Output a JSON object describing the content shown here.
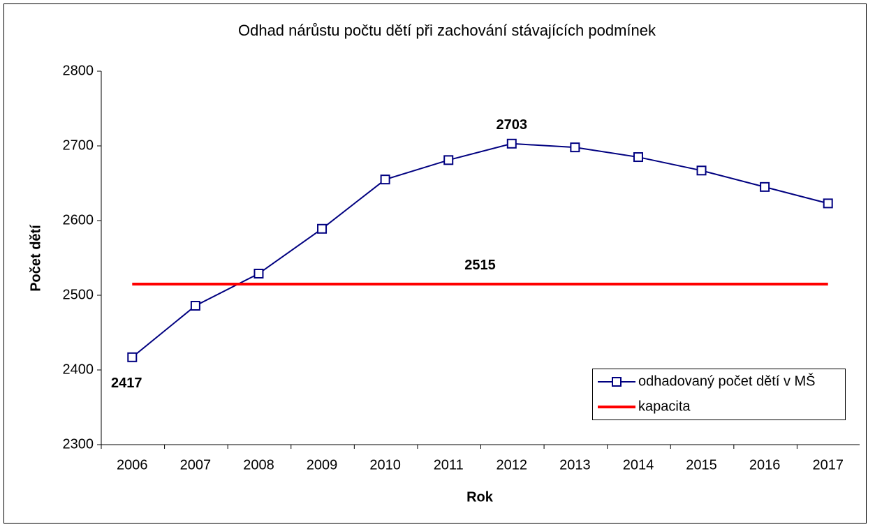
{
  "chart_data": {
    "type": "line",
    "title": "Odhad nárůstu počtu dětí při zachování stávajících podmínek",
    "x_label": "Rok",
    "y_label": "Počet dětí",
    "categories": [
      "2006",
      "2007",
      "2008",
      "2009",
      "2010",
      "2011",
      "2012",
      "2013",
      "2014",
      "2015",
      "2016",
      "2017"
    ],
    "series": [
      {
        "name": "odhadovaný počet dětí v MŠ",
        "color": "#000080",
        "marker": "square",
        "values": [
          2417,
          2486,
          2529,
          2589,
          2655,
          2681,
          2703,
          2698,
          2685,
          2667,
          2645,
          2623
        ],
        "labeled": [
          0,
          6
        ]
      },
      {
        "name": "kapacita",
        "color": "#ff0000",
        "values": [
          2515,
          2515,
          2515,
          2515,
          2515,
          2515,
          2515,
          2515,
          2515,
          2515,
          2515,
          2515
        ],
        "labeled": [
          5
        ]
      }
    ],
    "ylim": [
      2300,
      2800
    ],
    "yticks": [
      2300,
      2400,
      2500,
      2600,
      2700,
      2800
    ],
    "grid": false,
    "legend": "lower right"
  }
}
